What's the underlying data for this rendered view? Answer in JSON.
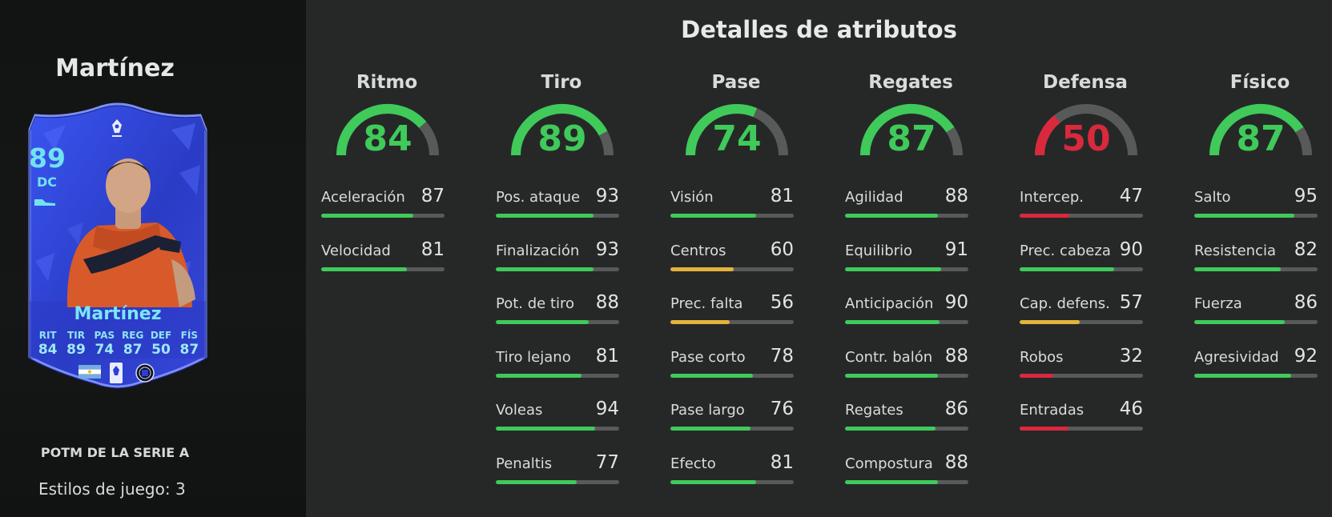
{
  "player": {
    "name": "Martínez",
    "card": {
      "rating": "89",
      "position": "DC",
      "name": "Martínez",
      "stats": [
        {
          "label": "RIT",
          "value": "84"
        },
        {
          "label": "TIR",
          "value": "89"
        },
        {
          "label": "PAS",
          "value": "74"
        },
        {
          "label": "REG",
          "value": "87"
        },
        {
          "label": "DEF",
          "value": "50"
        },
        {
          "label": "FÍS",
          "value": "87"
        }
      ]
    },
    "promo": "POTM DE LA SERIE A",
    "playstyles": "Estilos de juego: 3"
  },
  "page_title": "Detalles de atributos",
  "colors": {
    "high": "#3fca5a",
    "mid": "#e3b33c",
    "low": "#d9293d",
    "track": "#585a5a",
    "card": "#2c3fd1"
  },
  "categories": [
    {
      "name": "Ritmo",
      "value": "84",
      "rating": 84,
      "attributes": [
        {
          "name": "Aceleración",
          "value": "87",
          "rating": 87
        },
        {
          "name": "Velocidad",
          "value": "81",
          "rating": 81
        }
      ]
    },
    {
      "name": "Tiro",
      "value": "89",
      "rating": 89,
      "attributes": [
        {
          "name": "Pos. ataque",
          "value": "93",
          "rating": 93
        },
        {
          "name": "Finalización",
          "value": "93",
          "rating": 93
        },
        {
          "name": "Pot. de tiro",
          "value": "88",
          "rating": 88
        },
        {
          "name": "Tiro lejano",
          "value": "81",
          "rating": 81
        },
        {
          "name": "Voleas",
          "value": "94",
          "rating": 94
        },
        {
          "name": "Penaltis",
          "value": "77",
          "rating": 77
        }
      ]
    },
    {
      "name": "Pase",
      "value": "74",
      "rating": 74,
      "attributes": [
        {
          "name": "Visión",
          "value": "81",
          "rating": 81
        },
        {
          "name": "Centros",
          "value": "60",
          "rating": 60
        },
        {
          "name": "Prec. falta",
          "value": "56",
          "rating": 56
        },
        {
          "name": "Pase corto",
          "value": "78",
          "rating": 78
        },
        {
          "name": "Pase largo",
          "value": "76",
          "rating": 76
        },
        {
          "name": "Efecto",
          "value": "81",
          "rating": 81
        }
      ]
    },
    {
      "name": "Regates",
      "value": "87",
      "rating": 87,
      "attributes": [
        {
          "name": "Agilidad",
          "value": "88",
          "rating": 88
        },
        {
          "name": "Equilibrio",
          "value": "91",
          "rating": 91
        },
        {
          "name": "Anticipación",
          "value": "90",
          "rating": 90
        },
        {
          "name": "Contr. balón",
          "value": "88",
          "rating": 88
        },
        {
          "name": "Regates",
          "value": "86",
          "rating": 86
        },
        {
          "name": "Compostura",
          "value": "88",
          "rating": 88
        }
      ]
    },
    {
      "name": "Defensa",
      "value": "50",
      "rating": 50,
      "attributes": [
        {
          "name": "Intercep.",
          "value": "47",
          "rating": 47
        },
        {
          "name": "Prec. cabeza",
          "value": "90",
          "rating": 90
        },
        {
          "name": "Cap. defens.",
          "value": "57",
          "rating": 57
        },
        {
          "name": "Robos",
          "value": "32",
          "rating": 32
        },
        {
          "name": "Entradas",
          "value": "46",
          "rating": 46
        }
      ]
    },
    {
      "name": "Físico",
      "value": "87",
      "rating": 87,
      "attributes": [
        {
          "name": "Salto",
          "value": "95",
          "rating": 95
        },
        {
          "name": "Resistencia",
          "value": "82",
          "rating": 82
        },
        {
          "name": "Fuerza",
          "value": "86",
          "rating": 86
        },
        {
          "name": "Agresividad",
          "value": "92",
          "rating": 92
        }
      ]
    }
  ]
}
